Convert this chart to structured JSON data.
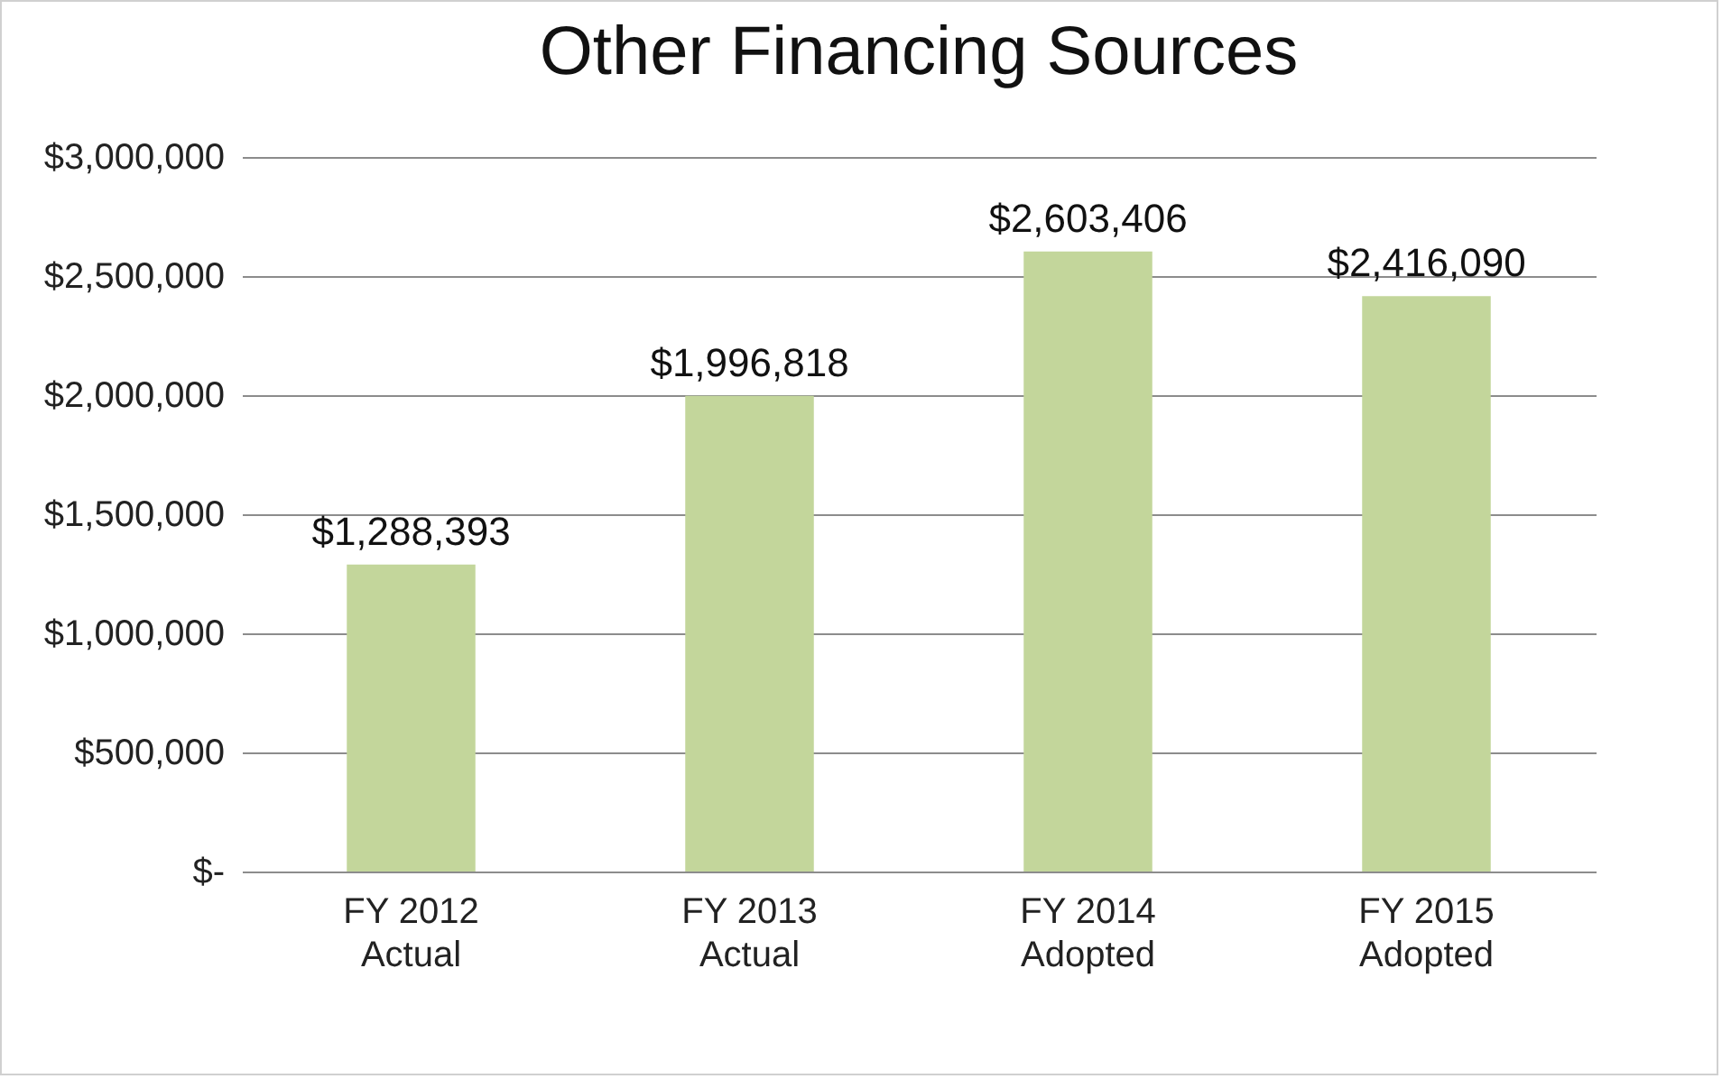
{
  "chart_data": {
    "type": "bar",
    "title": "Other Financing Sources",
    "categories": [
      "FY 2012\nActual",
      "FY 2013\nActual",
      "FY 2014\nAdopted",
      "FY 2015\nAdopted"
    ],
    "values": [
      1288393,
      1996818,
      2603406,
      2416090
    ],
    "value_labels": [
      "$1,288,393",
      "$1,996,818",
      "$2,603,406",
      "$2,416,090"
    ],
    "color": "#c3d69b",
    "ylim": [
      0,
      3000000
    ],
    "yticks": [
      {
        "value": 0,
        "label": "$-"
      },
      {
        "value": 500000,
        "label": "$500,000"
      },
      {
        "value": 1000000,
        "label": "$1,000,000"
      },
      {
        "value": 1500000,
        "label": "$1,500,000"
      },
      {
        "value": 2000000,
        "label": "$2,000,000"
      },
      {
        "value": 2500000,
        "label": "$2,500,000"
      },
      {
        "value": 3000000,
        "label": "$3,000,000"
      }
    ],
    "grid": "y"
  }
}
